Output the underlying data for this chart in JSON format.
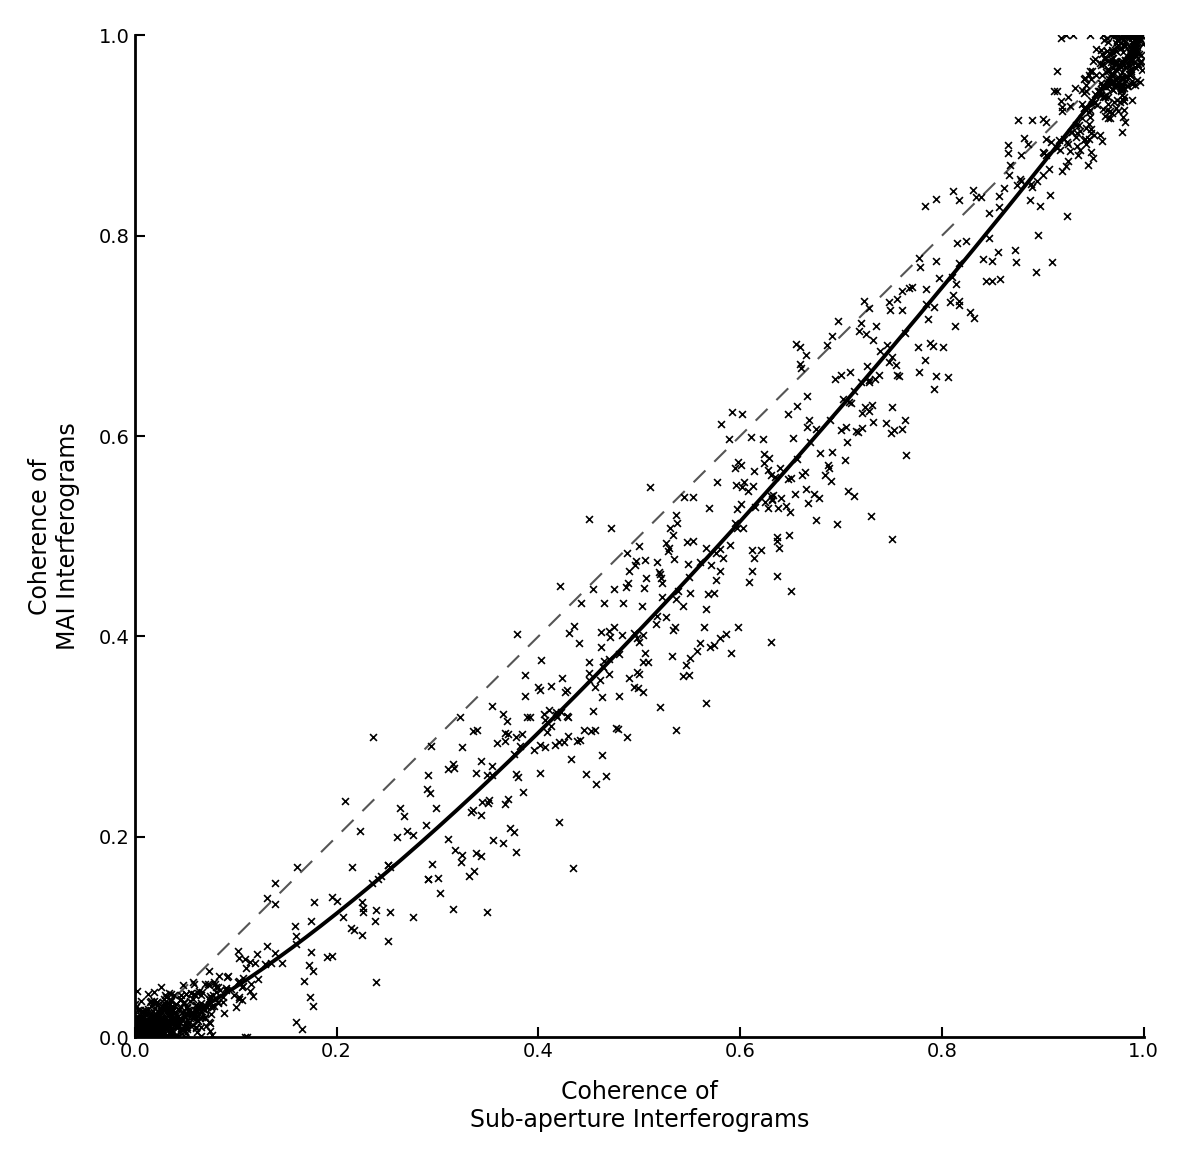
{
  "xlabel": "Coherence of\nSub-aperture Interferograms",
  "ylabel": "Coherence of\nMAI Interferograms",
  "xlim": [
    0,
    1
  ],
  "ylim": [
    0,
    1
  ],
  "xticks": [
    0,
    0.2,
    0.4,
    0.6,
    0.8,
    1
  ],
  "yticks": [
    0,
    0.2,
    0.4,
    0.6,
    0.8,
    1
  ],
  "marker": "x",
  "marker_color": "#000000",
  "marker_size": 7,
  "marker_linewidth": 1.2,
  "curve_color": "#000000",
  "curve_linewidth": 2.8,
  "dashed_color": "#555555",
  "dashed_linewidth": 1.5,
  "background_color": "#ffffff",
  "seed": 42,
  "label_fontsize": 16,
  "tick_fontsize": 14,
  "xlabel_fontsize": 17,
  "ylabel_fontsize": 17,
  "curve_exponent": 1.3,
  "n_main": 500,
  "n_dense_low": 600,
  "n_dense_high": 300
}
